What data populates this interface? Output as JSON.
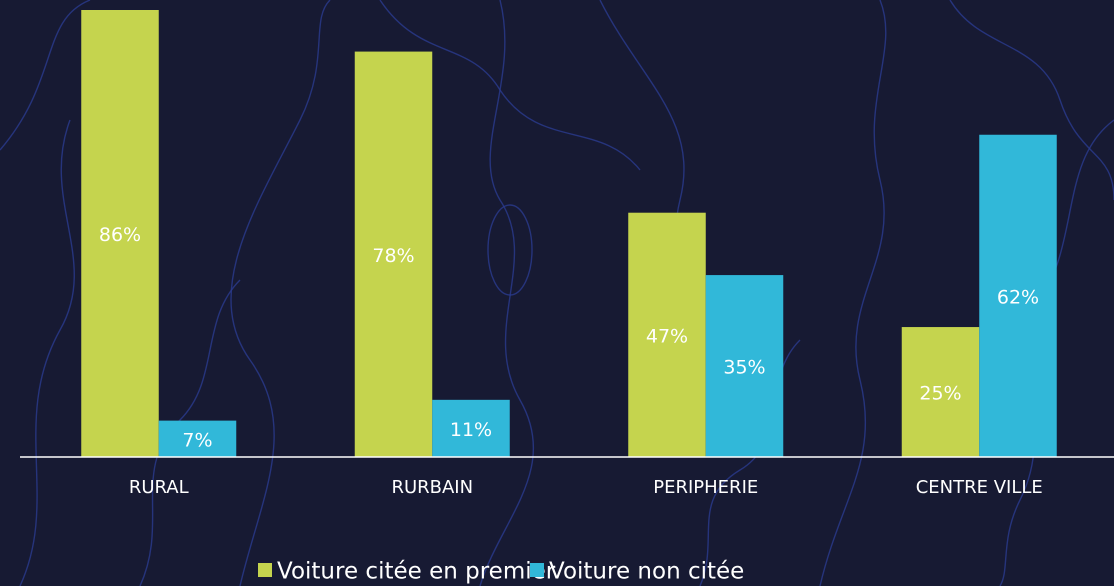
{
  "chart_data": {
    "type": "bar",
    "categories": [
      "RURAL",
      "RURBAIN",
      "PERIPHERIE",
      "CENTRE VILLE"
    ],
    "series": [
      {
        "name": "Voiture citée en premier",
        "color": "#c5d44e",
        "values": [
          86,
          78,
          47,
          25
        ],
        "value_labels": [
          "86%",
          "78%",
          "47%",
          "25%"
        ]
      },
      {
        "name": "Voiture non citée",
        "color": "#31b8d9",
        "values": [
          7,
          11,
          35,
          62
        ],
        "value_labels": [
          "7%",
          "11%",
          "35%",
          "62%"
        ]
      }
    ],
    "legend": "bottom"
  }
}
